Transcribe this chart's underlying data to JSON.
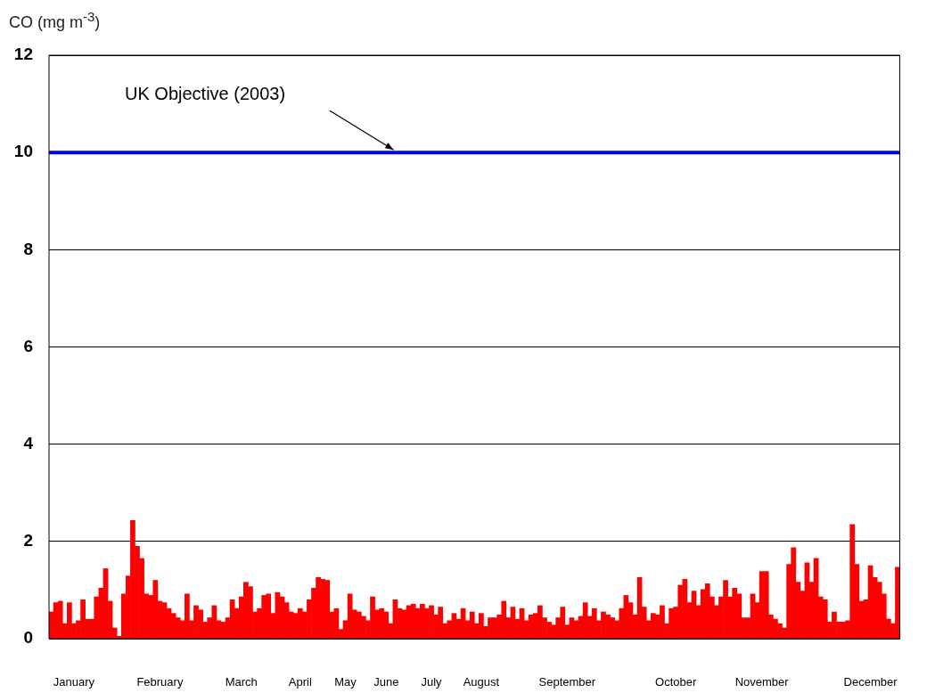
{
  "chart_data": {
    "type": "bar",
    "ylabel": "CO (mg m$^{-3}$)",
    "categories": [
      null,
      null,
      null,
      null,
      null,
      "January",
      null,
      null,
      null,
      null,
      null,
      null,
      null,
      null,
      null,
      null,
      null,
      null,
      null,
      null,
      null,
      null,
      null,
      null,
      "February",
      null,
      null,
      null,
      null,
      null,
      null,
      null,
      null,
      null,
      null,
      null,
      null,
      null,
      null,
      null,
      null,
      null,
      "March",
      null,
      null,
      null,
      null,
      null,
      null,
      null,
      null,
      null,
      null,
      null,
      null,
      "April",
      null,
      null,
      null,
      null,
      null,
      null,
      null,
      null,
      null,
      "May",
      null,
      null,
      null,
      null,
      null,
      null,
      null,
      null,
      "June",
      null,
      null,
      null,
      null,
      null,
      null,
      null,
      null,
      null,
      "July",
      null,
      null,
      null,
      null,
      null,
      null,
      null,
      null,
      null,
      null,
      "August",
      null,
      null,
      null,
      null,
      null,
      null,
      null,
      null,
      null,
      null,
      null,
      null,
      null,
      null,
      null,
      null,
      null,
      null,
      "September",
      null,
      null,
      null,
      null,
      null,
      null,
      null,
      null,
      null,
      null,
      null,
      null,
      null,
      null,
      null,
      null,
      null,
      null,
      null,
      null,
      null,
      null,
      null,
      "October",
      null,
      null,
      null,
      null,
      null,
      null,
      null,
      null,
      null,
      null,
      null,
      null,
      null,
      null,
      null,
      null,
      null,
      null,
      "November",
      null,
      null,
      null,
      null,
      null,
      null,
      null,
      null,
      null,
      null,
      null,
      null,
      null,
      null,
      null,
      null,
      null,
      null,
      null,
      null,
      null,
      null,
      null,
      "December",
      null,
      null,
      null,
      null,
      null,
      null
    ],
    "values": [
      0.55,
      0.74,
      0.77,
      0.31,
      0.74,
      0.31,
      0.37,
      0.8,
      0.4,
      0.4,
      0.86,
      1.04,
      1.44,
      0.77,
      0.22,
      0.05,
      0.92,
      1.29,
      2.43,
      1.9,
      1.65,
      0.92,
      0.89,
      1.2,
      0.77,
      0.74,
      0.62,
      0.52,
      0.43,
      0.37,
      0.92,
      0.37,
      0.68,
      0.59,
      0.34,
      0.43,
      0.68,
      0.37,
      0.34,
      0.43,
      0.8,
      0.62,
      0.86,
      1.16,
      1.07,
      0.55,
      0.62,
      0.89,
      0.92,
      0.52,
      0.95,
      0.86,
      0.74,
      0.55,
      0.52,
      0.62,
      0.55,
      0.8,
      1.04,
      1.26,
      1.22,
      1.2,
      0.55,
      0.62,
      0.19,
      0.37,
      0.92,
      0.59,
      0.55,
      0.46,
      0.37,
      0.86,
      0.59,
      0.62,
      0.55,
      0.31,
      0.8,
      0.62,
      0.59,
      0.68,
      0.71,
      0.62,
      0.71,
      0.62,
      0.68,
      0.49,
      0.65,
      0.31,
      0.37,
      0.52,
      0.4,
      0.62,
      0.37,
      0.55,
      0.31,
      0.52,
      0.25,
      0.43,
      0.43,
      0.49,
      0.77,
      0.43,
      0.65,
      0.4,
      0.62,
      0.37,
      0.49,
      0.52,
      0.68,
      0.43,
      0.34,
      0.28,
      0.43,
      0.65,
      0.28,
      0.43,
      0.37,
      0.46,
      0.74,
      0.46,
      0.62,
      0.37,
      0.55,
      0.49,
      0.43,
      0.37,
      0.62,
      0.89,
      0.74,
      0.49,
      1.26,
      0.65,
      0.37,
      0.52,
      0.49,
      0.68,
      0.31,
      0.62,
      0.65,
      1.1,
      1.22,
      0.74,
      0.98,
      0.68,
      1.01,
      1.13,
      0.86,
      0.68,
      0.86,
      1.2,
      0.86,
      1.04,
      0.92,
      0.43,
      0.43,
      0.92,
      0.74,
      1.38,
      1.38,
      0.49,
      0.4,
      0.31,
      0.22,
      1.53,
      1.87,
      1.16,
      0.98,
      1.56,
      1.16,
      1.65,
      0.86,
      0.8,
      0.34,
      0.55,
      0.34,
      0.34,
      0.37,
      2.35,
      1.53,
      0.77,
      0.8,
      1.5,
      1.26,
      1.16,
      0.92,
      0.4,
      0.31,
      1.47
    ],
    "color": "#ff0000",
    "ylim": [
      0,
      12
    ],
    "yticks": [
      0,
      2,
      4,
      6,
      8,
      10,
      12
    ],
    "grid": "y",
    "legend": false,
    "ref_lines": [
      {
        "axis": "y",
        "value": 10,
        "label": "UK Objective (2003)",
        "color": "#0000ff"
      }
    ]
  }
}
